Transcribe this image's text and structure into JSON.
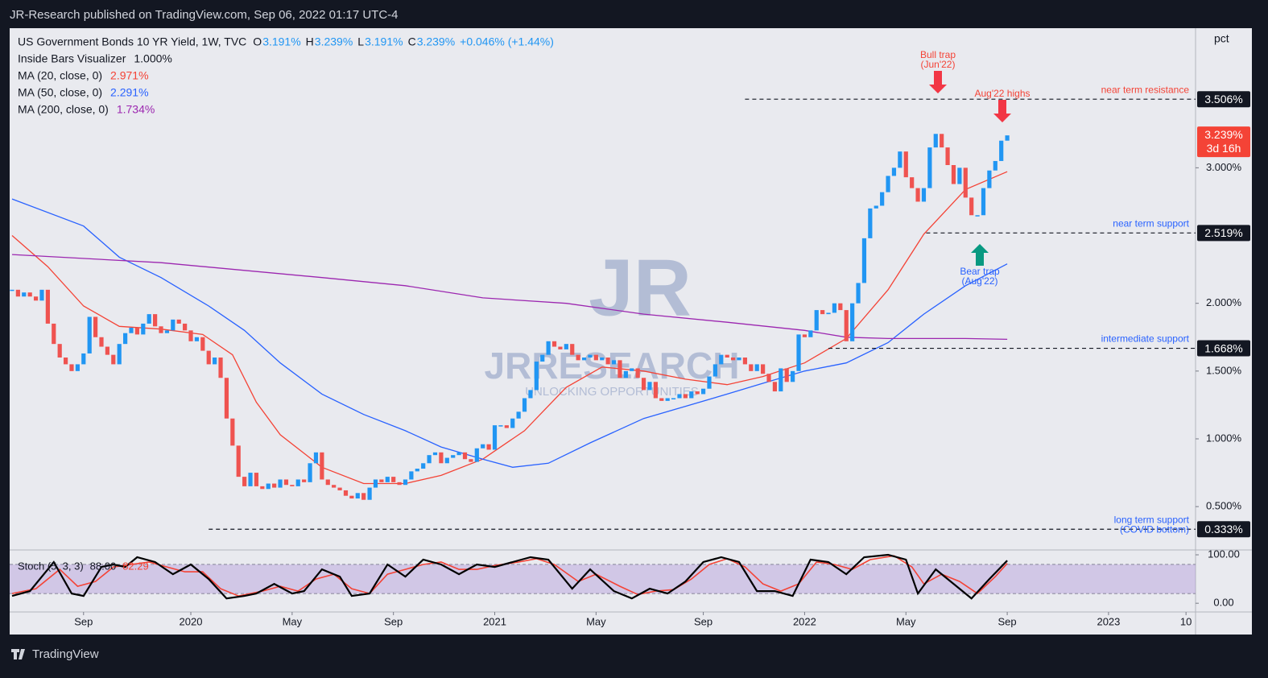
{
  "published": "JR-Research published on TradingView.com, Sep 06, 2022 01:17 UTC-4",
  "brand": "TradingView",
  "chart_data": {
    "type": "candlestick",
    "header": {
      "title": "US Government Bonds 10 YR Yield, 1W, TVC",
      "ohlc": [
        {
          "key": "O",
          "value": "3.191%"
        },
        {
          "key": "H",
          "value": "3.239%"
        },
        {
          "key": "L",
          "value": "3.191%"
        },
        {
          "key": "C",
          "value": "3.239%"
        }
      ],
      "change": "+0.046% (+1.44%)"
    },
    "indicators": [
      {
        "name": "Inside Bars Visualizer",
        "value": "1.000%"
      }
    ],
    "y_unit": "pct",
    "up_color": "#2196f3",
    "down_color": "#ef5350",
    "xlim": [
      -0.4,
      198.6
    ],
    "xticks": [
      {
        "value": 12,
        "label": "Sep"
      },
      {
        "value": 30,
        "label": "2020"
      },
      {
        "value": 47,
        "label": "May"
      },
      {
        "value": 64,
        "label": "Sep"
      },
      {
        "value": 81,
        "label": "2021"
      },
      {
        "value": 98,
        "label": "May"
      },
      {
        "value": 116,
        "label": "Sep"
      },
      {
        "value": 133,
        "label": "2022"
      },
      {
        "value": 150,
        "label": "May"
      },
      {
        "value": 167,
        "label": "Sep"
      },
      {
        "value": 184,
        "label": "2023"
      },
      {
        "value": 197,
        "label": "10"
      }
    ],
    "ylim": [
      0.18,
      4.03
    ],
    "yticks": [
      {
        "value": 3,
        "label": "3.000%"
      },
      {
        "value": 2,
        "label": "2.000%"
      },
      {
        "value": 1.5,
        "label": "1.500%"
      },
      {
        "value": 1,
        "label": "1.000%"
      },
      {
        "value": 0.5,
        "label": "0.500%"
      }
    ],
    "closes": [
      2.1,
      2.05,
      2.08,
      2.05,
      2.02,
      2.1,
      1.85,
      1.7,
      1.6,
      1.55,
      1.5,
      1.55,
      1.63,
      1.9,
      1.75,
      1.68,
      1.62,
      1.55,
      1.7,
      1.78,
      1.82,
      1.77,
      1.85,
      1.92,
      1.83,
      1.78,
      1.8,
      1.88,
      1.85,
      1.8,
      1.72,
      1.75,
      1.65,
      1.55,
      1.6,
      1.45,
      1.15,
      0.95,
      0.72,
      0.65,
      0.75,
      0.65,
      0.63,
      0.67,
      0.64,
      0.7,
      0.66,
      0.65,
      0.7,
      0.68,
      0.82,
      0.9,
      0.7,
      0.66,
      0.64,
      0.62,
      0.58,
      0.56,
      0.6,
      0.55,
      0.64,
      0.7,
      0.68,
      0.72,
      0.68,
      0.66,
      0.7,
      0.76,
      0.78,
      0.82,
      0.88,
      0.9,
      0.82,
      0.86,
      0.88,
      0.9,
      0.85,
      0.83,
      0.93,
      0.96,
      0.92,
      1.1,
      1.1,
      1.08,
      1.15,
      1.2,
      1.3,
      1.36,
      1.57,
      1.62,
      1.72,
      1.68,
      1.66,
      1.7,
      1.62,
      1.58,
      1.6,
      1.62,
      1.58,
      1.6,
      1.55,
      1.58,
      1.45,
      1.5,
      1.52,
      1.45,
      1.36,
      1.42,
      1.3,
      1.28,
      1.3,
      1.3,
      1.33,
      1.3,
      1.35,
      1.33,
      1.37,
      1.46,
      1.55,
      1.62,
      1.6,
      1.58,
      1.6,
      1.55,
      1.5,
      1.55,
      1.48,
      1.42,
      1.35,
      1.52,
      1.42,
      1.5,
      1.77,
      1.75,
      1.8,
      1.95,
      1.92,
      1.93,
      2.0,
      1.95,
      1.72,
      2.0,
      2.15,
      2.48,
      2.7,
      2.72,
      2.82,
      2.94,
      3.0,
      3.12,
      2.93,
      2.85,
      2.75,
      2.85,
      3.15,
      3.25,
      3.15,
      3.02,
      2.88,
      3.0,
      2.78,
      2.65,
      2.65,
      2.85,
      2.98,
      3.05,
      3.2,
      3.239
    ],
    "series": [
      {
        "name": "MA (20, close, 0)",
        "legend_value": "2.971%",
        "color": "#f44336",
        "x": [
          0,
          6,
          12,
          18,
          25,
          32,
          37,
          41,
          45,
          52,
          59,
          66,
          72,
          79,
          86,
          93,
          99,
          106,
          113,
          120,
          126,
          133,
          140,
          147,
          153,
          160,
          167
        ],
        "values": [
          2.5,
          2.27,
          1.98,
          1.83,
          1.81,
          1.77,
          1.62,
          1.27,
          1.03,
          0.79,
          0.67,
          0.67,
          0.73,
          0.85,
          1.06,
          1.38,
          1.53,
          1.5,
          1.44,
          1.4,
          1.46,
          1.56,
          1.74,
          2.1,
          2.51,
          2.84,
          2.971
        ]
      },
      {
        "name": "MA (50, close, 0)",
        "legend_value": "2.291%",
        "color": "#2962ff",
        "x": [
          0,
          12,
          18,
          25,
          33,
          39,
          45,
          52,
          59,
          66,
          72,
          79,
          84,
          90,
          97,
          106,
          113,
          120,
          126,
          133,
          140,
          147,
          153,
          160,
          167
        ],
        "values": [
          2.77,
          2.57,
          2.34,
          2.19,
          1.98,
          1.8,
          1.56,
          1.33,
          1.18,
          1.06,
          0.94,
          0.85,
          0.79,
          0.82,
          0.97,
          1.15,
          1.24,
          1.33,
          1.41,
          1.5,
          1.56,
          1.71,
          1.92,
          2.13,
          2.291
        ]
      },
      {
        "name": "MA (200, close, 0)",
        "legend_value": "1.734%",
        "color": "#9c27b0",
        "x": [
          0,
          25,
          52,
          66,
          79,
          93,
          106,
          120,
          133,
          140,
          147,
          160,
          167
        ],
        "values": [
          2.36,
          2.3,
          2.19,
          2.13,
          2.04,
          2,
          1.92,
          1.86,
          1.8,
          1.75,
          1.74,
          1.74,
          1.734
        ]
      }
    ],
    "levels": [
      {
        "value": 3.506,
        "label": "3.506%",
        "from": 123,
        "note": [
          "near term resistance"
        ],
        "note_color": "#f44336"
      },
      {
        "value": 2.519,
        "label": "2.519%",
        "from": 153.4,
        "note": [
          "near term support"
        ],
        "note_color": "#2962ff"
      },
      {
        "value": 1.668,
        "label": "1.668%",
        "from": 137,
        "note": [
          "intermediate support"
        ],
        "note_color": "#2962ff"
      },
      {
        "value": 0.333,
        "label": "0.333%",
        "from": 33,
        "note": [
          "long term support",
          "(COVID bottom)"
        ],
        "note_color": "#2962ff"
      }
    ],
    "last_price": {
      "value": 3.239,
      "label": "3.239%",
      "countdown": "3d 16h"
    },
    "annotations": [
      {
        "text": [
          "Bull trap",
          "(Jun'22)"
        ],
        "color": "#f44336"
      },
      {
        "text": [
          "Aug'22 highs"
        ],
        "color": "#f44336"
      },
      {
        "text": [
          "Bear trap",
          "(Aug'22)"
        ],
        "color": "#2962ff"
      }
    ],
    "watermark": [
      "JR",
      "JRRESEARCH",
      "UNLOCKING OPPORTUNITIES"
    ],
    "stoch": {
      "name": "Stoch (5, 3, 3)",
      "k_label": "88.00",
      "d_label": "82.29",
      "ylim": [
        -18,
        110
      ],
      "yticks": [
        {
          "value": 100,
          "label": "100.00"
        },
        {
          "value": 0,
          "label": "0.00"
        }
      ],
      "bands": [
        20,
        80
      ],
      "k": {
        "color": "#000000",
        "x": [
          0,
          3,
          7,
          10,
          12,
          15,
          17,
          19,
          21,
          24,
          27,
          30,
          33,
          36,
          39,
          41,
          44,
          47,
          49,
          52,
          55,
          57,
          60,
          63,
          66,
          69,
          72,
          75,
          78,
          81,
          84,
          87,
          90,
          94,
          97,
          101,
          104,
          107,
          110,
          113,
          116,
          119,
          122,
          125,
          128,
          131,
          134,
          137,
          140,
          143,
          147,
          150,
          152,
          155,
          158,
          161,
          164,
          167
        ],
        "values": [
          15,
          25,
          85,
          20,
          15,
          75,
          80,
          75,
          95,
          85,
          60,
          80,
          50,
          10,
          15,
          20,
          40,
          20,
          25,
          70,
          55,
          15,
          20,
          80,
          55,
          90,
          80,
          60,
          80,
          75,
          85,
          95,
          90,
          30,
          70,
          25,
          10,
          30,
          20,
          45,
          85,
          95,
          85,
          25,
          25,
          15,
          90,
          85,
          60,
          95,
          100,
          90,
          20,
          70,
          40,
          10,
          50,
          88
        ]
      },
      "d": {
        "color": "#f44336",
        "x": [
          0,
          4,
          8,
          11,
          14,
          17,
          20,
          23,
          26,
          29,
          32,
          35,
          38,
          42,
          45,
          48,
          51,
          54,
          57,
          60,
          63,
          66,
          69,
          72,
          75,
          78,
          81,
          85,
          88,
          91,
          95,
          98,
          102,
          105,
          108,
          111,
          114,
          117,
          120,
          123,
          126,
          129,
          132,
          135,
          138,
          141,
          144,
          148,
          151,
          153,
          156,
          159,
          162,
          165,
          167
        ],
        "values": [
          20,
          30,
          70,
          35,
          45,
          75,
          80,
          85,
          75,
          65,
          65,
          30,
          15,
          25,
          35,
          25,
          50,
          60,
          30,
          20,
          60,
          70,
          80,
          85,
          70,
          70,
          78,
          85,
          92,
          80,
          45,
          60,
          35,
          18,
          25,
          28,
          50,
          80,
          92,
          75,
          40,
          25,
          40,
          85,
          80,
          70,
          90,
          98,
          75,
          40,
          60,
          45,
          20,
          55,
          82.29
        ]
      }
    }
  }
}
